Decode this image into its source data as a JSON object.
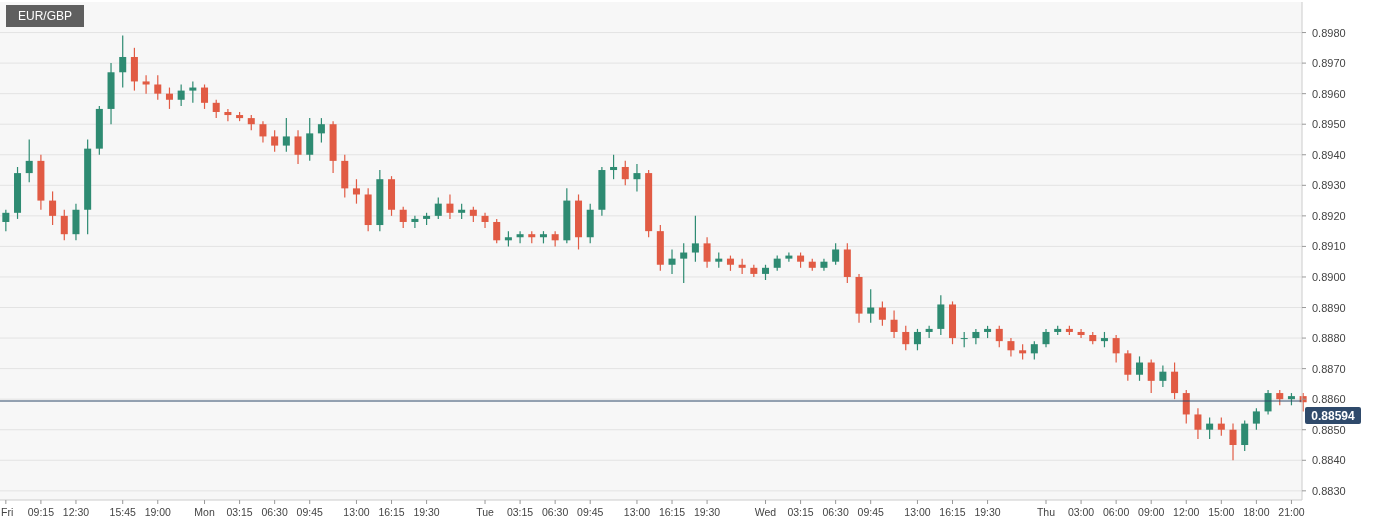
{
  "chart_data": {
    "type": "candlestick",
    "title": "EUR/GBP",
    "ohlc": [
      [
        0.8918,
        0.8922,
        0.8915,
        0.8921
      ],
      [
        0.8921,
        0.8936,
        0.8919,
        0.8934
      ],
      [
        0.8934,
        0.8945,
        0.8931,
        0.8938
      ],
      [
        0.8938,
        0.894,
        0.8922,
        0.8925
      ],
      [
        0.8925,
        0.8928,
        0.8917,
        0.892
      ],
      [
        0.892,
        0.8922,
        0.8912,
        0.8914
      ],
      [
        0.8914,
        0.8924,
        0.8912,
        0.8922
      ],
      [
        0.8922,
        0.8945,
        0.8914,
        0.8942
      ],
      [
        0.8942,
        0.8956,
        0.894,
        0.8955
      ],
      [
        0.8955,
        0.897,
        0.895,
        0.8967
      ],
      [
        0.8967,
        0.8979,
        0.8962,
        0.8972
      ],
      [
        0.8972,
        0.8975,
        0.8961,
        0.8964
      ],
      [
        0.8964,
        0.8966,
        0.896,
        0.8963
      ],
      [
        0.8963,
        0.8966,
        0.8958,
        0.896
      ],
      [
        0.896,
        0.8962,
        0.8955,
        0.8958
      ],
      [
        0.8958,
        0.8963,
        0.8956,
        0.8961
      ],
      [
        0.8961,
        0.8964,
        0.8957,
        0.8962
      ],
      [
        0.8962,
        0.8963,
        0.8955,
        0.8957
      ],
      [
        0.8957,
        0.8958,
        0.8952,
        0.8954
      ],
      [
        0.8954,
        0.8955,
        0.8951,
        0.8953
      ],
      [
        0.8953,
        0.8954,
        0.8951,
        0.8952
      ],
      [
        0.8952,
        0.8953,
        0.8948,
        0.895
      ],
      [
        0.895,
        0.8951,
        0.8944,
        0.8946
      ],
      [
        0.8946,
        0.8948,
        0.8941,
        0.8943
      ],
      [
        0.8943,
        0.8952,
        0.8941,
        0.8946
      ],
      [
        0.8946,
        0.8948,
        0.8937,
        0.894
      ],
      [
        0.894,
        0.8952,
        0.8938,
        0.8947
      ],
      [
        0.8947,
        0.8952,
        0.8944,
        0.895
      ],
      [
        0.895,
        0.8951,
        0.8934,
        0.8938
      ],
      [
        0.8938,
        0.894,
        0.8926,
        0.8929
      ],
      [
        0.8929,
        0.8932,
        0.8924,
        0.8927
      ],
      [
        0.8927,
        0.8929,
        0.8915,
        0.8917
      ],
      [
        0.8917,
        0.8935,
        0.8915,
        0.8932
      ],
      [
        0.8932,
        0.8933,
        0.892,
        0.8922
      ],
      [
        0.8922,
        0.8923,
        0.8916,
        0.8918
      ],
      [
        0.8918,
        0.892,
        0.8916,
        0.8919
      ],
      [
        0.8919,
        0.8921,
        0.8917,
        0.892
      ],
      [
        0.892,
        0.8926,
        0.8919,
        0.8924
      ],
      [
        0.8924,
        0.8927,
        0.8919,
        0.8921
      ],
      [
        0.8921,
        0.8924,
        0.8919,
        0.8922
      ],
      [
        0.8922,
        0.8923,
        0.8918,
        0.892
      ],
      [
        0.892,
        0.8921,
        0.8916,
        0.8918
      ],
      [
        0.8918,
        0.8919,
        0.8911,
        0.8912
      ],
      [
        0.8912,
        0.8915,
        0.891,
        0.8913
      ],
      [
        0.8913,
        0.8915,
        0.8911,
        0.8914
      ],
      [
        0.8914,
        0.8915,
        0.8911,
        0.8913
      ],
      [
        0.8913,
        0.8915,
        0.8911,
        0.8914
      ],
      [
        0.8914,
        0.8915,
        0.891,
        0.8912
      ],
      [
        0.8912,
        0.8929,
        0.8911,
        0.8925
      ],
      [
        0.8925,
        0.8927,
        0.8909,
        0.8913
      ],
      [
        0.8913,
        0.8924,
        0.8911,
        0.8922
      ],
      [
        0.8922,
        0.8936,
        0.892,
        0.8935
      ],
      [
        0.8935,
        0.894,
        0.8932,
        0.8936
      ],
      [
        0.8936,
        0.8938,
        0.893,
        0.8932
      ],
      [
        0.8932,
        0.8937,
        0.8928,
        0.8934
      ],
      [
        0.8934,
        0.8935,
        0.8913,
        0.8915
      ],
      [
        0.8915,
        0.8917,
        0.8902,
        0.8904
      ],
      [
        0.8904,
        0.8909,
        0.8901,
        0.8906
      ],
      [
        0.8906,
        0.8911,
        0.8898,
        0.8908
      ],
      [
        0.8908,
        0.892,
        0.8905,
        0.8911
      ],
      [
        0.8911,
        0.8913,
        0.8903,
        0.8905
      ],
      [
        0.8905,
        0.8908,
        0.8903,
        0.8906
      ],
      [
        0.8906,
        0.8907,
        0.8902,
        0.8904
      ],
      [
        0.8904,
        0.8906,
        0.8901,
        0.8903
      ],
      [
        0.8903,
        0.8904,
        0.89,
        0.8901
      ],
      [
        0.8901,
        0.8904,
        0.8899,
        0.8903
      ],
      [
        0.8903,
        0.8907,
        0.8902,
        0.8906
      ],
      [
        0.8906,
        0.8908,
        0.8905,
        0.8907
      ],
      [
        0.8907,
        0.8908,
        0.8903,
        0.8905
      ],
      [
        0.8905,
        0.8906,
        0.8902,
        0.8903
      ],
      [
        0.8903,
        0.8906,
        0.8902,
        0.8905
      ],
      [
        0.8905,
        0.8911,
        0.8904,
        0.8909
      ],
      [
        0.8909,
        0.8911,
        0.8898,
        0.89
      ],
      [
        0.89,
        0.8901,
        0.8885,
        0.8888
      ],
      [
        0.8888,
        0.8896,
        0.8885,
        0.889
      ],
      [
        0.889,
        0.8892,
        0.8884,
        0.8886
      ],
      [
        0.8886,
        0.8889,
        0.888,
        0.8882
      ],
      [
        0.8882,
        0.8884,
        0.8876,
        0.8878
      ],
      [
        0.8878,
        0.8883,
        0.8876,
        0.8882
      ],
      [
        0.8882,
        0.8884,
        0.888,
        0.8883
      ],
      [
        0.8883,
        0.8894,
        0.8881,
        0.8891
      ],
      [
        0.8891,
        0.8892,
        0.8878,
        0.888
      ],
      [
        0.888,
        0.8882,
        0.8877,
        0.888
      ],
      [
        0.888,
        0.8883,
        0.8878,
        0.8882
      ],
      [
        0.8882,
        0.8884,
        0.888,
        0.8883
      ],
      [
        0.8883,
        0.8884,
        0.8877,
        0.8879
      ],
      [
        0.8879,
        0.888,
        0.8874,
        0.8876
      ],
      [
        0.8876,
        0.8878,
        0.8873,
        0.8875
      ],
      [
        0.8875,
        0.8879,
        0.8873,
        0.8878
      ],
      [
        0.8878,
        0.8883,
        0.8877,
        0.8882
      ],
      [
        0.8882,
        0.8884,
        0.8881,
        0.8883
      ],
      [
        0.8883,
        0.8884,
        0.8881,
        0.8882
      ],
      [
        0.8882,
        0.8883,
        0.888,
        0.8881
      ],
      [
        0.8881,
        0.8882,
        0.8878,
        0.8879
      ],
      [
        0.8879,
        0.8882,
        0.8877,
        0.888
      ],
      [
        0.888,
        0.8881,
        0.8872,
        0.8875
      ],
      [
        0.8875,
        0.8876,
        0.8866,
        0.8868
      ],
      [
        0.8868,
        0.8874,
        0.8866,
        0.8872
      ],
      [
        0.8872,
        0.8873,
        0.8862,
        0.8866
      ],
      [
        0.8866,
        0.8871,
        0.8864,
        0.8869
      ],
      [
        0.8869,
        0.8872,
        0.886,
        0.8862
      ],
      [
        0.8862,
        0.8863,
        0.8852,
        0.8855
      ],
      [
        0.8855,
        0.8857,
        0.8847,
        0.885
      ],
      [
        0.885,
        0.8854,
        0.8847,
        0.8852
      ],
      [
        0.8852,
        0.8854,
        0.8848,
        0.885
      ],
      [
        0.885,
        0.8852,
        0.884,
        0.8845
      ],
      [
        0.8845,
        0.8853,
        0.8843,
        0.8852
      ],
      [
        0.8852,
        0.8857,
        0.885,
        0.8856
      ],
      [
        0.8856,
        0.8863,
        0.8855,
        0.8862
      ],
      [
        0.8862,
        0.8863,
        0.8858,
        0.886
      ],
      [
        0.886,
        0.8862,
        0.8858,
        0.8861
      ],
      [
        0.8861,
        0.8862,
        0.8856,
        0.8859
      ]
    ],
    "categories": [
      "Fri",
      null,
      null,
      "09:15",
      null,
      null,
      "12:30",
      null,
      null,
      null,
      "15:45",
      null,
      null,
      "19:00",
      null,
      null,
      null,
      "Mon",
      null,
      null,
      "03:15",
      null,
      null,
      "06:30",
      null,
      null,
      "09:45",
      null,
      null,
      null,
      "13:00",
      null,
      null,
      "16:15",
      null,
      null,
      "19:30",
      null,
      null,
      null,
      null,
      "Tue",
      null,
      null,
      "03:15",
      null,
      null,
      "06:30",
      null,
      null,
      "09:45",
      null,
      null,
      null,
      "13:00",
      null,
      null,
      "16:15",
      null,
      null,
      "19:30",
      null,
      null,
      null,
      null,
      "Wed",
      null,
      null,
      "03:15",
      null,
      null,
      "06:30",
      null,
      null,
      "09:45",
      null,
      null,
      null,
      "13:00",
      null,
      null,
      "16:15",
      null,
      null,
      "19:30",
      null,
      null,
      null,
      null,
      "Thu",
      null,
      null,
      "03:00",
      null,
      null,
      "06:00",
      null,
      null,
      "09:00",
      null,
      null,
      "12:00",
      null,
      null,
      "15:00",
      null,
      null,
      "18:00",
      null,
      null,
      "21:00",
      null
    ],
    "ylim": [
      0.8827,
      0.899
    ],
    "yticks": [
      {
        "value": 0.883,
        "label": "0.8830"
      },
      {
        "value": 0.884,
        "label": "0.8840"
      },
      {
        "value": 0.885,
        "label": "0.8850"
      },
      {
        "value": 0.886,
        "label": "0.8860"
      },
      {
        "value": 0.887,
        "label": "0.8870"
      },
      {
        "value": 0.888,
        "label": "0.8880"
      },
      {
        "value": 0.889,
        "label": "0.8890"
      },
      {
        "value": 0.89,
        "label": "0.8900"
      },
      {
        "value": 0.891,
        "label": "0.8910"
      },
      {
        "value": 0.892,
        "label": "0.8920"
      },
      {
        "value": 0.893,
        "label": "0.8930"
      },
      {
        "value": 0.894,
        "label": "0.8940"
      },
      {
        "value": 0.895,
        "label": "0.8950"
      },
      {
        "value": 0.896,
        "label": "0.8960"
      },
      {
        "value": 0.897,
        "label": "0.8970"
      },
      {
        "value": 0.898,
        "label": "0.8980"
      }
    ],
    "ref_lines": [
      {
        "axis": "y",
        "value": 0.88594,
        "label": "0.88594",
        "color": "#2f4a6b"
      }
    ],
    "grid": "y"
  }
}
